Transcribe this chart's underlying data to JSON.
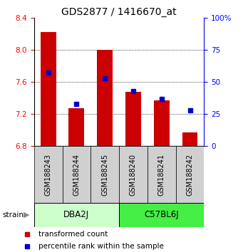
{
  "title": "GDS2877 / 1416670_at",
  "samples": [
    "GSM188243",
    "GSM188244",
    "GSM188245",
    "GSM188240",
    "GSM188241",
    "GSM188242"
  ],
  "red_values": [
    8.22,
    7.27,
    8.0,
    7.48,
    7.37,
    6.97
  ],
  "blue_percentiles": [
    57,
    33,
    53,
    43,
    37,
    28
  ],
  "y_min": 6.8,
  "y_max": 8.4,
  "y_ticks": [
    6.8,
    7.2,
    7.6,
    8.0,
    8.4
  ],
  "right_y_ticks": [
    0,
    25,
    50,
    75,
    100
  ],
  "groups": [
    {
      "label": "DBA2J",
      "indices": [
        0,
        1,
        2
      ],
      "color": "#ccffcc"
    },
    {
      "label": "C57BL6J",
      "indices": [
        3,
        4,
        5
      ],
      "color": "#44ee44"
    }
  ],
  "red_color": "#cc0000",
  "blue_color": "#0000cc",
  "bar_width": 0.55,
  "baseline": 6.8,
  "sample_bg": "#d0d0d0",
  "title_fontsize": 10,
  "tick_fontsize": 7.5,
  "label_fontsize": 7,
  "strain_fontsize": 8.5,
  "legend_fontsize": 7.5
}
